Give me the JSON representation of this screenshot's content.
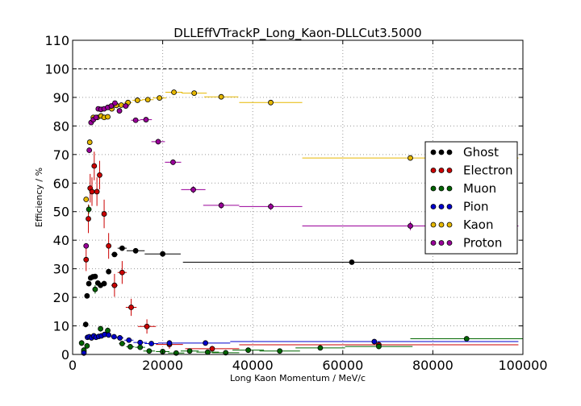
{
  "chart_data": {
    "type": "scatter",
    "title": "DLLEffVTrackP_Long_Kaon-DLLCut3.5000",
    "xlabel": "Long Kaon Momentum / MeV/c",
    "ylabel": "Efficiency / %",
    "xlim": [
      0,
      100000
    ],
    "ylim": [
      0,
      110
    ],
    "xticks": [
      0,
      20000,
      40000,
      60000,
      80000,
      100000
    ],
    "yticks": [
      0,
      10,
      20,
      30,
      40,
      50,
      60,
      70,
      80,
      90,
      100,
      110
    ],
    "grid": true,
    "reference_line": 100,
    "legend_position": "right",
    "series": [
      {
        "name": "Ghost",
        "color": "#000000",
        "points": [
          {
            "x": 2900,
            "y": 10.5,
            "xerr": 300,
            "yerr": 1.0
          },
          {
            "x": 3200,
            "y": 20.5,
            "xerr": 200,
            "yerr": 0.8
          },
          {
            "x": 3600,
            "y": 24.8,
            "xerr": 250,
            "yerr": 0.7
          },
          {
            "x": 4000,
            "y": 26.8,
            "xerr": 250,
            "yerr": 0.7
          },
          {
            "x": 4500,
            "y": 27.2,
            "xerr": 250,
            "yerr": 0.7
          },
          {
            "x": 5000,
            "y": 27.3,
            "xerr": 250,
            "yerr": 0.7
          },
          {
            "x": 5600,
            "y": 25.0,
            "xerr": 300,
            "yerr": 0.8
          },
          {
            "x": 6200,
            "y": 24.2,
            "xerr": 300,
            "yerr": 0.8
          },
          {
            "x": 7000,
            "y": 24.8,
            "xerr": 400,
            "yerr": 0.8
          },
          {
            "x": 8000,
            "y": 29.0,
            "xerr": 500,
            "yerr": 0.8
          },
          {
            "x": 9300,
            "y": 35.0,
            "xerr": 700,
            "yerr": 0.8
          },
          {
            "x": 11000,
            "y": 37.2,
            "xerr": 1000,
            "yerr": 0.8
          },
          {
            "x": 14000,
            "y": 36.3,
            "xerr": 2000,
            "yerr": 0.8
          },
          {
            "x": 20000,
            "y": 35.2,
            "xerr": 4000,
            "yerr": 0.8
          },
          {
            "x": 62000,
            "y": 32.3,
            "xerr": 37500,
            "yerr": 0.8
          }
        ]
      },
      {
        "name": "Electron",
        "color": "#cc0000",
        "points": [
          {
            "x": 2500,
            "y": 1.0,
            "xerr": 300,
            "yerr": 1.5
          },
          {
            "x": 3000,
            "y": 33.2,
            "xerr": 200,
            "yerr": 4.0
          },
          {
            "x": 3500,
            "y": 47.5,
            "xerr": 200,
            "yerr": 5.0
          },
          {
            "x": 3900,
            "y": 58.2,
            "xerr": 200,
            "yerr": 5.0
          },
          {
            "x": 4300,
            "y": 57.0,
            "xerr": 200,
            "yerr": 5.0
          },
          {
            "x": 4800,
            "y": 66.0,
            "xerr": 250,
            "yerr": 5.0
          },
          {
            "x": 5400,
            "y": 57.0,
            "xerr": 300,
            "yerr": 5.0
          },
          {
            "x": 6000,
            "y": 62.8,
            "xerr": 300,
            "yerr": 5.0
          },
          {
            "x": 7000,
            "y": 49.2,
            "xerr": 400,
            "yerr": 5.0
          },
          {
            "x": 8000,
            "y": 38.0,
            "xerr": 500,
            "yerr": 4.5
          },
          {
            "x": 9300,
            "y": 24.2,
            "xerr": 700,
            "yerr": 4.0
          },
          {
            "x": 11000,
            "y": 28.7,
            "xerr": 1000,
            "yerr": 4.0
          },
          {
            "x": 13000,
            "y": 16.5,
            "xerr": 1200,
            "yerr": 3.0
          },
          {
            "x": 16500,
            "y": 9.8,
            "xerr": 2000,
            "yerr": 2.5
          },
          {
            "x": 21500,
            "y": 3.5,
            "xerr": 3000,
            "yerr": 1.5
          },
          {
            "x": 31000,
            "y": 2.0,
            "xerr": 6000,
            "yerr": 1.0
          },
          {
            "x": 68000,
            "y": 3.4,
            "xerr": 31000,
            "yerr": 0.8
          }
        ]
      },
      {
        "name": "Muon",
        "color": "#006600",
        "points": [
          {
            "x": 2000,
            "y": 4.0,
            "xerr": 300,
            "yerr": 1.0
          },
          {
            "x": 2500,
            "y": 1.5,
            "xerr": 200,
            "yerr": 1.0
          },
          {
            "x": 3200,
            "y": 3.0,
            "xerr": 300,
            "yerr": 1.0
          },
          {
            "x": 3600,
            "y": 50.8,
            "xerr": 200,
            "yerr": 1.5
          },
          {
            "x": 5000,
            "y": 22.8,
            "xerr": 300,
            "yerr": 1.5
          },
          {
            "x": 6200,
            "y": 9.0,
            "xerr": 300,
            "yerr": 1.0
          },
          {
            "x": 7800,
            "y": 8.4,
            "xerr": 400,
            "yerr": 1.0
          },
          {
            "x": 11000,
            "y": 3.8,
            "xerr": 700,
            "yerr": 0.6
          },
          {
            "x": 12800,
            "y": 2.7,
            "xerr": 900,
            "yerr": 0.5
          },
          {
            "x": 15000,
            "y": 2.5,
            "xerr": 1100,
            "yerr": 0.5
          },
          {
            "x": 17000,
            "y": 1.2,
            "xerr": 1300,
            "yerr": 0.4
          },
          {
            "x": 20000,
            "y": 1.0,
            "xerr": 1500,
            "yerr": 0.4
          },
          {
            "x": 23000,
            "y": 0.5,
            "xerr": 1800,
            "yerr": 0.4
          },
          {
            "x": 26000,
            "y": 1.2,
            "xerr": 2000,
            "yerr": 0.4
          },
          {
            "x": 30000,
            "y": 0.8,
            "xerr": 2500,
            "yerr": 0.4
          },
          {
            "x": 34000,
            "y": 0.6,
            "xerr": 3000,
            "yerr": 0.4
          },
          {
            "x": 39000,
            "y": 1.5,
            "xerr": 3500,
            "yerr": 0.4
          },
          {
            "x": 46000,
            "y": 1.2,
            "xerr": 4500,
            "yerr": 0.4
          },
          {
            "x": 55000,
            "y": 2.3,
            "xerr": 5500,
            "yerr": 0.4
          },
          {
            "x": 68000,
            "y": 2.8,
            "xerr": 7500,
            "yerr": 0.4
          },
          {
            "x": 87500,
            "y": 5.5,
            "xerr": 12500,
            "yerr": 0.4
          }
        ]
      },
      {
        "name": "Pion",
        "color": "#0000cc",
        "points": [
          {
            "x": 2500,
            "y": 0.5,
            "xerr": 300,
            "yerr": 0.3
          },
          {
            "x": 3300,
            "y": 6.0,
            "xerr": 200,
            "yerr": 0.3
          },
          {
            "x": 3700,
            "y": 6.2,
            "xerr": 200,
            "yerr": 0.3
          },
          {
            "x": 4200,
            "y": 5.8,
            "xerr": 200,
            "yerr": 0.3
          },
          {
            "x": 4700,
            "y": 6.5,
            "xerr": 250,
            "yerr": 0.3
          },
          {
            "x": 5200,
            "y": 6.0,
            "xerr": 250,
            "yerr": 0.3
          },
          {
            "x": 5800,
            "y": 6.3,
            "xerr": 300,
            "yerr": 0.3
          },
          {
            "x": 6400,
            "y": 6.5,
            "xerr": 300,
            "yerr": 0.3
          },
          {
            "x": 7100,
            "y": 7.0,
            "xerr": 400,
            "yerr": 0.3
          },
          {
            "x": 8000,
            "y": 6.8,
            "xerr": 500,
            "yerr": 0.3
          },
          {
            "x": 9200,
            "y": 6.2,
            "xerr": 700,
            "yerr": 0.3
          },
          {
            "x": 10500,
            "y": 5.8,
            "xerr": 800,
            "yerr": 0.3
          },
          {
            "x": 12500,
            "y": 5.0,
            "xerr": 1000,
            "yerr": 0.3
          },
          {
            "x": 15000,
            "y": 4.2,
            "xerr": 1500,
            "yerr": 0.3
          },
          {
            "x": 17500,
            "y": 3.8,
            "xerr": 1500,
            "yerr": 0.3
          },
          {
            "x": 21500,
            "y": 4.0,
            "xerr": 2500,
            "yerr": 0.3
          },
          {
            "x": 29500,
            "y": 4.0,
            "xerr": 5500,
            "yerr": 0.3
          },
          {
            "x": 67000,
            "y": 4.5,
            "xerr": 32000,
            "yerr": 0.3
          }
        ]
      },
      {
        "name": "Kaon",
        "color": "#e6b800",
        "points": [
          {
            "x": 3000,
            "y": 54.3,
            "xerr": 300,
            "yerr": 0.5
          },
          {
            "x": 3800,
            "y": 74.3,
            "xerr": 200,
            "yerr": 0.5
          },
          {
            "x": 4600,
            "y": 83.0,
            "xerr": 300,
            "yerr": 0.5
          },
          {
            "x": 5500,
            "y": 83.0,
            "xerr": 300,
            "yerr": 0.5
          },
          {
            "x": 6300,
            "y": 83.5,
            "xerr": 300,
            "yerr": 0.5
          },
          {
            "x": 7000,
            "y": 83.0,
            "xerr": 400,
            "yerr": 0.5
          },
          {
            "x": 7800,
            "y": 83.2,
            "xerr": 400,
            "yerr": 0.5
          },
          {
            "x": 8700,
            "y": 86.0,
            "xerr": 500,
            "yerr": 0.5
          },
          {
            "x": 9700,
            "y": 87.2,
            "xerr": 600,
            "yerr": 0.5
          },
          {
            "x": 10800,
            "y": 87.3,
            "xerr": 700,
            "yerr": 0.5
          },
          {
            "x": 12300,
            "y": 88.2,
            "xerr": 900,
            "yerr": 0.5
          },
          {
            "x": 14400,
            "y": 89.0,
            "xerr": 1100,
            "yerr": 0.5
          },
          {
            "x": 16700,
            "y": 89.2,
            "xerr": 1300,
            "yerr": 0.5
          },
          {
            "x": 19300,
            "y": 89.8,
            "xerr": 1500,
            "yerr": 0.5
          },
          {
            "x": 22500,
            "y": 91.8,
            "xerr": 1900,
            "yerr": 0.5
          },
          {
            "x": 27000,
            "y": 91.5,
            "xerr": 2800,
            "yerr": 0.5
          },
          {
            "x": 33000,
            "y": 90.2,
            "xerr": 3800,
            "yerr": 0.5
          },
          {
            "x": 44000,
            "y": 88.2,
            "xerr": 7000,
            "yerr": 0.6
          },
          {
            "x": 75000,
            "y": 68.8,
            "xerr": 24000,
            "yerr": 0.8
          }
        ]
      },
      {
        "name": "Proton",
        "color": "#990099",
        "points": [
          {
            "x": 3000,
            "y": 38.0,
            "xerr": 300,
            "yerr": 1.0
          },
          {
            "x": 3700,
            "y": 71.5,
            "xerr": 200,
            "yerr": 1.0
          },
          {
            "x": 4100,
            "y": 81.2,
            "xerr": 200,
            "yerr": 0.8
          },
          {
            "x": 4600,
            "y": 82.2,
            "xerr": 250,
            "yerr": 0.8
          },
          {
            "x": 5200,
            "y": 83.0,
            "xerr": 250,
            "yerr": 0.8
          },
          {
            "x": 5700,
            "y": 86.0,
            "xerr": 300,
            "yerr": 0.8
          },
          {
            "x": 6300,
            "y": 85.8,
            "xerr": 300,
            "yerr": 0.8
          },
          {
            "x": 7000,
            "y": 86.0,
            "xerr": 400,
            "yerr": 0.8
          },
          {
            "x": 7800,
            "y": 86.5,
            "xerr": 400,
            "yerr": 0.8
          },
          {
            "x": 8600,
            "y": 87.0,
            "xerr": 500,
            "yerr": 0.8
          },
          {
            "x": 9400,
            "y": 88.0,
            "xerr": 500,
            "yerr": 0.8
          },
          {
            "x": 10400,
            "y": 85.3,
            "xerr": 600,
            "yerr": 0.8
          },
          {
            "x": 11800,
            "y": 87.0,
            "xerr": 800,
            "yerr": 0.8
          },
          {
            "x": 14000,
            "y": 82.0,
            "xerr": 1000,
            "yerr": 0.8
          },
          {
            "x": 16300,
            "y": 82.2,
            "xerr": 1300,
            "yerr": 0.8
          },
          {
            "x": 19000,
            "y": 74.5,
            "xerr": 1500,
            "yerr": 1.0
          },
          {
            "x": 22300,
            "y": 67.3,
            "xerr": 1800,
            "yerr": 1.0
          },
          {
            "x": 26800,
            "y": 57.7,
            "xerr": 2700,
            "yerr": 1.2
          },
          {
            "x": 33000,
            "y": 52.2,
            "xerr": 4000,
            "yerr": 1.2
          },
          {
            "x": 44000,
            "y": 51.8,
            "xerr": 7000,
            "yerr": 1.2
          },
          {
            "x": 75000,
            "y": 45.0,
            "xerr": 24000,
            "yerr": 1.5
          }
        ]
      }
    ]
  }
}
